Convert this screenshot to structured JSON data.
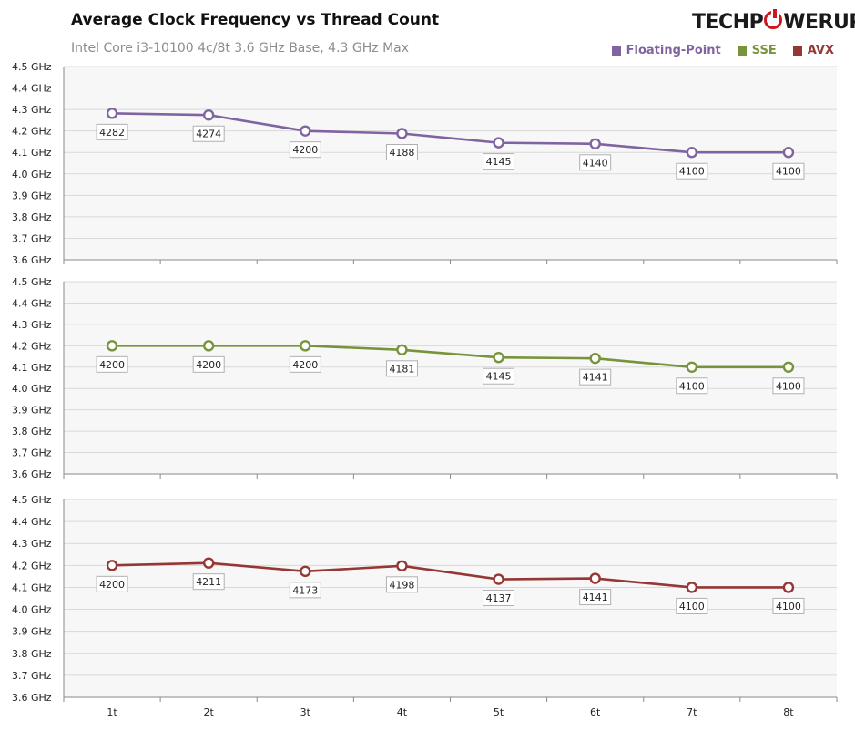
{
  "header": {
    "title": "Average Clock Frequency vs Thread Count",
    "subtitle": "Intel Core i3-10100 4c/8t 3.6 GHz Base,  4.3 GHz Max",
    "logo_left": "TECHP",
    "logo_right": "WERUP"
  },
  "legend": [
    {
      "name": "Floating-Point",
      "color": "#8064a2"
    },
    {
      "name": "SSE",
      "color": "#77933c"
    },
    {
      "name": "AVX",
      "color": "#953735"
    }
  ],
  "chart_data": {
    "type": "line",
    "title": "Average Clock Frequency vs Thread Count",
    "subtitle": "Intel Core i3-10100 4c/8t 3.6 GHz Base,  4.3 GHz Max",
    "xlabel": "",
    "ylabel": "",
    "categories": [
      "1t",
      "2t",
      "3t",
      "4t",
      "5t",
      "6t",
      "7t",
      "8t"
    ],
    "ylim": [
      3600,
      4500
    ],
    "ytick_labels": [
      "4.5 GHz",
      "4.4 GHz",
      "4.3 GHz",
      "4.2 GHz",
      "4.1 GHz",
      "4.0 GHz",
      "3.9 GHz",
      "3.8 GHz",
      "3.7 GHz",
      "3.6 GHz"
    ],
    "series": [
      {
        "name": "Floating-Point",
        "color": "#8064a2",
        "values": [
          4282,
          4274,
          4200,
          4188,
          4145,
          4140,
          4100,
          4100
        ]
      },
      {
        "name": "SSE",
        "color": "#77933c",
        "values": [
          4200,
          4200,
          4200,
          4181,
          4145,
          4141,
          4100,
          4100
        ]
      },
      {
        "name": "AVX",
        "color": "#953735",
        "values": [
          4200,
          4211,
          4173,
          4198,
          4137,
          4141,
          4100,
          4100
        ]
      }
    ]
  }
}
